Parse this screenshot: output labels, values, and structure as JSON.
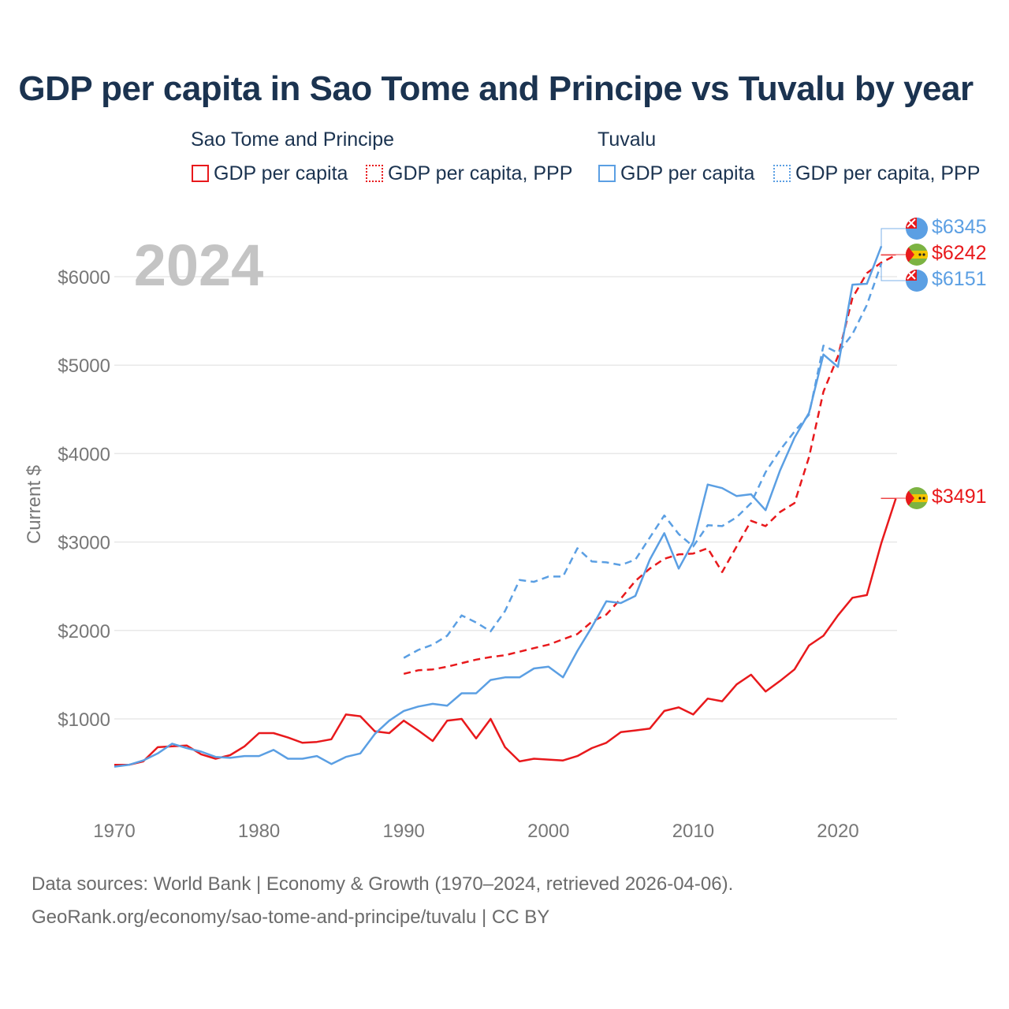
{
  "title": "GDP per capita in Sao Tome and Principe vs Tuvalu by year",
  "legend": {
    "groups": [
      {
        "name": "Sao Tome and Principe",
        "color": "#e8191c",
        "items": [
          "GDP per capita",
          "GDP per capita, PPP"
        ]
      },
      {
        "name": "Tuvalu",
        "color": "#5b9fe3",
        "items": [
          "GDP per capita",
          "GDP per capita, PPP"
        ]
      }
    ]
  },
  "footer": {
    "line1": "Data sources: World Bank | Economy & Growth (1970–2024, retrieved 2026-04-06).",
    "line2": "GeoRank.org/economy/sao-tome-and-principe/tuvalu | CC BY"
  },
  "chart_data": {
    "type": "line",
    "title": "GDP per capita in Sao Tome and Principe vs Tuvalu by year",
    "year_label": "2024",
    "xlabel": "",
    "ylabel": "Current $",
    "xlim": [
      1970,
      2025
    ],
    "ylim": [
      0,
      6600
    ],
    "x_ticks": [
      1970,
      1980,
      1990,
      2000,
      2010,
      2020
    ],
    "y_ticks": [
      1000,
      2000,
      3000,
      4000,
      5000,
      6000
    ],
    "y_tick_labels": [
      "$1000",
      "$2000",
      "$3000",
      "$4000",
      "$5000",
      "$6000"
    ],
    "grid": true,
    "series": [
      {
        "name": "Sao Tome and Principe — GDP per capita",
        "color": "#e8191c",
        "dashed": false,
        "end_label": "$3491",
        "x": [
          1970,
          1971,
          1972,
          1973,
          1974,
          1975,
          1976,
          1977,
          1978,
          1979,
          1980,
          1981,
          1982,
          1983,
          1984,
          1985,
          1986,
          1987,
          1988,
          1989,
          1990,
          1991,
          1992,
          1993,
          1994,
          1995,
          1996,
          1997,
          1998,
          1999,
          2000,
          2001,
          2002,
          2003,
          2004,
          2005,
          2006,
          2007,
          2008,
          2009,
          2010,
          2011,
          2012,
          2013,
          2014,
          2015,
          2016,
          2017,
          2018,
          2019,
          2020,
          2021,
          2022,
          2023,
          2024
        ],
        "values": [
          480,
          480,
          520,
          680,
          690,
          700,
          600,
          550,
          590,
          690,
          840,
          840,
          790,
          730,
          740,
          770,
          1050,
          1030,
          860,
          840,
          980,
          870,
          750,
          980,
          1000,
          780,
          1000,
          680,
          520,
          550,
          540,
          530,
          580,
          670,
          730,
          850,
          870,
          890,
          1090,
          1130,
          1050,
          1230,
          1200,
          1390,
          1500,
          1310,
          1430,
          1560,
          1830,
          1940,
          2170,
          2370,
          2400,
          2990,
          3491
        ]
      },
      {
        "name": "Sao Tome and Principe — GDP per capita, PPP",
        "color": "#e8191c",
        "dashed": true,
        "end_label": "$6242",
        "x": [
          1990,
          1991,
          1992,
          1993,
          1994,
          1995,
          1996,
          1997,
          1998,
          1999,
          2000,
          2001,
          2002,
          2003,
          2004,
          2005,
          2006,
          2007,
          2008,
          2009,
          2010,
          2011,
          2012,
          2013,
          2014,
          2015,
          2016,
          2017,
          2018,
          2019,
          2020,
          2021,
          2022,
          2023,
          2024
        ],
        "values": [
          1510,
          1550,
          1560,
          1590,
          1630,
          1670,
          1700,
          1720,
          1760,
          1800,
          1840,
          1900,
          1960,
          2100,
          2180,
          2360,
          2560,
          2700,
          2810,
          2860,
          2870,
          2930,
          2660,
          2950,
          3240,
          3180,
          3340,
          3440,
          3960,
          4700,
          5100,
          5760,
          6040,
          6160,
          6242
        ]
      },
      {
        "name": "Tuvalu — GDP per capita",
        "color": "#5b9fe3",
        "dashed": false,
        "end_label": "$6345",
        "x": [
          1970,
          1971,
          1972,
          1973,
          1974,
          1975,
          1976,
          1977,
          1978,
          1979,
          1980,
          1981,
          1982,
          1983,
          1984,
          1985,
          1986,
          1987,
          1988,
          1989,
          1990,
          1991,
          1992,
          1993,
          1994,
          1995,
          1996,
          1997,
          1998,
          1999,
          2000,
          2001,
          2002,
          2003,
          2004,
          2005,
          2006,
          2007,
          2008,
          2009,
          2010,
          2011,
          2012,
          2013,
          2014,
          2015,
          2016,
          2017,
          2018,
          2019,
          2020,
          2021,
          2022,
          2023
        ],
        "values": [
          460,
          480,
          530,
          610,
          720,
          670,
          630,
          570,
          560,
          580,
          580,
          650,
          550,
          550,
          580,
          490,
          570,
          610,
          830,
          980,
          1090,
          1140,
          1170,
          1150,
          1290,
          1290,
          1440,
          1470,
          1470,
          1570,
          1590,
          1470,
          1770,
          2040,
          2330,
          2310,
          2390,
          2800,
          3100,
          2700,
          3000,
          3650,
          3610,
          3520,
          3540,
          3360,
          3810,
          4180,
          4460,
          5120,
          4980,
          5910,
          5920,
          6345
        ]
      },
      {
        "name": "Tuvalu — GDP per capita, PPP",
        "color": "#5b9fe3",
        "dashed": true,
        "end_label": "$6151",
        "x": [
          1990,
          1991,
          1992,
          1993,
          1994,
          1995,
          1996,
          1997,
          1998,
          1999,
          2000,
          2001,
          2002,
          2003,
          2004,
          2005,
          2006,
          2007,
          2008,
          2009,
          2010,
          2011,
          2012,
          2013,
          2014,
          2015,
          2016,
          2017,
          2018,
          2019,
          2020,
          2021,
          2022,
          2023
        ],
        "values": [
          1690,
          1780,
          1840,
          1940,
          2170,
          2090,
          1990,
          2220,
          2570,
          2550,
          2610,
          2610,
          2930,
          2780,
          2770,
          2740,
          2800,
          3050,
          3300,
          3090,
          2950,
          3190,
          3180,
          3280,
          3440,
          3790,
          4040,
          4250,
          4440,
          5220,
          5140,
          5350,
          5680,
          6151
        ]
      }
    ]
  }
}
